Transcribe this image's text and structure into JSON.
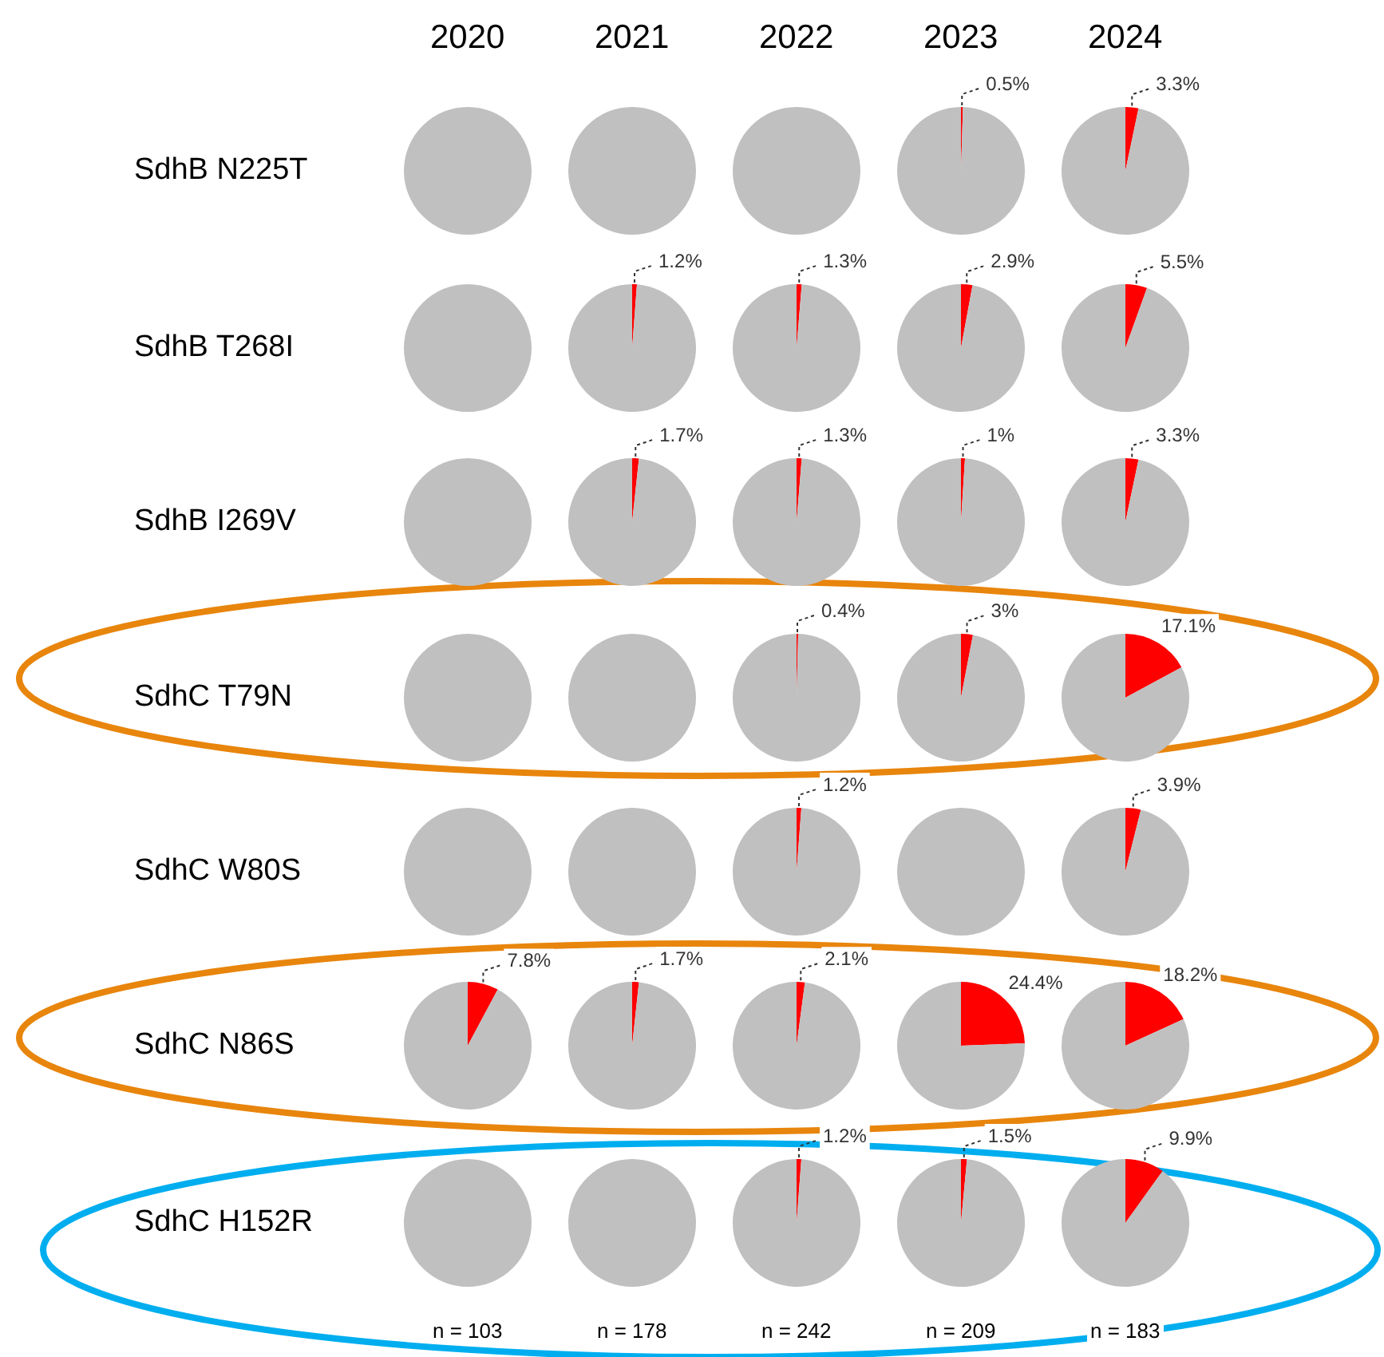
{
  "chart_data": [
    {
      "type": "pie",
      "title": "2020",
      "ylabel": "SdhB N225T",
      "categories": [
        null,
        null
      ],
      "values": [
        0,
        100
      ],
      "colors": [
        "#ff0000",
        "#c0c0c0"
      ],
      "value_labels": [
        null,
        null
      ]
    },
    {
      "type": "pie",
      "title": "2021",
      "categories": [
        null,
        null
      ],
      "values": [
        0,
        100
      ],
      "colors": [
        "#ff0000",
        "#c0c0c0"
      ],
      "value_labels": [
        null,
        null
      ]
    },
    {
      "type": "pie",
      "title": "2022",
      "categories": [
        null,
        null
      ],
      "values": [
        0,
        100
      ],
      "colors": [
        "#ff0000",
        "#c0c0c0"
      ],
      "value_labels": [
        null,
        null
      ]
    },
    {
      "type": "pie",
      "title": "2023",
      "categories": [
        null,
        null
      ],
      "values": [
        0.5,
        99.5
      ],
      "colors": [
        "#ff0000",
        "#c0c0c0"
      ],
      "value_labels": [
        "0.5%",
        null
      ]
    },
    {
      "type": "pie",
      "title": "2024",
      "categories": [
        null,
        null
      ],
      "values": [
        3.3,
        96.7
      ],
      "colors": [
        "#ff0000",
        "#c0c0c0"
      ],
      "value_labels": [
        "3.3%",
        null
      ]
    },
    {
      "type": "pie",
      "ylabel": "SdhB T268I",
      "categories": [
        null,
        null
      ],
      "values": [
        0,
        100
      ],
      "colors": [
        "#ff0000",
        "#c0c0c0"
      ],
      "value_labels": [
        null,
        null
      ]
    },
    {
      "type": "pie",
      "categories": [
        null,
        null
      ],
      "values": [
        1.2,
        98.8
      ],
      "colors": [
        "#ff0000",
        "#c0c0c0"
      ],
      "value_labels": [
        "1.2%",
        null
      ]
    },
    {
      "type": "pie",
      "categories": [
        null,
        null
      ],
      "values": [
        1.3,
        98.7
      ],
      "colors": [
        "#ff0000",
        "#c0c0c0"
      ],
      "value_labels": [
        "1.3%",
        null
      ]
    },
    {
      "type": "pie",
      "categories": [
        null,
        null
      ],
      "values": [
        2.9,
        97.1
      ],
      "colors": [
        "#ff0000",
        "#c0c0c0"
      ],
      "value_labels": [
        "2.9%",
        null
      ]
    },
    {
      "type": "pie",
      "categories": [
        null,
        null
      ],
      "values": [
        5.5,
        94.5
      ],
      "colors": [
        "#ff0000",
        "#c0c0c0"
      ],
      "value_labels": [
        "5.5%",
        null
      ]
    },
    {
      "type": "pie",
      "ylabel": "SdhB I269V",
      "categories": [
        null,
        null
      ],
      "values": [
        0,
        100
      ],
      "colors": [
        "#ff0000",
        "#c0c0c0"
      ],
      "value_labels": [
        null,
        null
      ]
    },
    {
      "type": "pie",
      "categories": [
        null,
        null
      ],
      "values": [
        1.7,
        98.3
      ],
      "colors": [
        "#ff0000",
        "#c0c0c0"
      ],
      "value_labels": [
        "1.7%",
        null
      ]
    },
    {
      "type": "pie",
      "categories": [
        null,
        null
      ],
      "values": [
        1.3,
        98.7
      ],
      "colors": [
        "#ff0000",
        "#c0c0c0"
      ],
      "value_labels": [
        "1.3%",
        null
      ]
    },
    {
      "type": "pie",
      "categories": [
        null,
        null
      ],
      "values": [
        1,
        99
      ],
      "colors": [
        "#ff0000",
        "#c0c0c0"
      ],
      "value_labels": [
        "1%",
        null
      ]
    },
    {
      "type": "pie",
      "categories": [
        null,
        null
      ],
      "values": [
        3.3,
        96.7
      ],
      "colors": [
        "#ff0000",
        "#c0c0c0"
      ],
      "value_labels": [
        "3.3%",
        null
      ]
    },
    {
      "type": "pie",
      "ylabel": "SdhC T79N",
      "categories": [
        null,
        null
      ],
      "values": [
        0,
        100
      ],
      "colors": [
        "#ff0000",
        "#c0c0c0"
      ],
      "value_labels": [
        null,
        null
      ]
    },
    {
      "type": "pie",
      "categories": [
        null,
        null
      ],
      "values": [
        0,
        100
      ],
      "colors": [
        "#ff0000",
        "#c0c0c0"
      ],
      "value_labels": [
        null,
        null
      ]
    },
    {
      "type": "pie",
      "categories": [
        null,
        null
      ],
      "values": [
        0.4,
        99.6
      ],
      "colors": [
        "#ff0000",
        "#c0c0c0"
      ],
      "value_labels": [
        "0.4%",
        null
      ]
    },
    {
      "type": "pie",
      "categories": [
        null,
        null
      ],
      "values": [
        3,
        97
      ],
      "colors": [
        "#ff0000",
        "#c0c0c0"
      ],
      "value_labels": [
        "3%",
        null
      ]
    },
    {
      "type": "pie",
      "categories": [
        null,
        null
      ],
      "values": [
        17.1,
        82.9
      ],
      "colors": [
        "#ff0000",
        "#c0c0c0"
      ],
      "value_labels": [
        "17.1%",
        null
      ]
    },
    {
      "type": "pie",
      "ylabel": "SdhC W80S",
      "categories": [
        null,
        null
      ],
      "values": [
        0,
        100
      ],
      "colors": [
        "#ff0000",
        "#c0c0c0"
      ],
      "value_labels": [
        null,
        null
      ]
    },
    {
      "type": "pie",
      "categories": [
        null,
        null
      ],
      "values": [
        0,
        100
      ],
      "colors": [
        "#ff0000",
        "#c0c0c0"
      ],
      "value_labels": [
        null,
        null
      ]
    },
    {
      "type": "pie",
      "categories": [
        null,
        null
      ],
      "values": [
        1.2,
        98.8
      ],
      "colors": [
        "#ff0000",
        "#c0c0c0"
      ],
      "value_labels": [
        "1.2%",
        null
      ]
    },
    {
      "type": "pie",
      "categories": [
        null,
        null
      ],
      "values": [
        0,
        100
      ],
      "colors": [
        "#ff0000",
        "#c0c0c0"
      ],
      "value_labels": [
        null,
        null
      ]
    },
    {
      "type": "pie",
      "categories": [
        null,
        null
      ],
      "values": [
        3.9,
        96.1
      ],
      "colors": [
        "#ff0000",
        "#c0c0c0"
      ],
      "value_labels": [
        "3.9%",
        null
      ]
    },
    {
      "type": "pie",
      "ylabel": "SdhC N86S",
      "categories": [
        null,
        null
      ],
      "values": [
        7.8,
        92.2
      ],
      "colors": [
        "#ff0000",
        "#c0c0c0"
      ],
      "value_labels": [
        "7.8%",
        null
      ]
    },
    {
      "type": "pie",
      "categories": [
        null,
        null
      ],
      "values": [
        1.7,
        98.3
      ],
      "colors": [
        "#ff0000",
        "#c0c0c0"
      ],
      "value_labels": [
        "1.7%",
        null
      ]
    },
    {
      "type": "pie",
      "categories": [
        null,
        null
      ],
      "values": [
        2.1,
        97.9
      ],
      "colors": [
        "#ff0000",
        "#c0c0c0"
      ],
      "value_labels": [
        "2.1%",
        null
      ]
    },
    {
      "type": "pie",
      "categories": [
        null,
        null
      ],
      "values": [
        24.4,
        75.6
      ],
      "colors": [
        "#ff0000",
        "#c0c0c0"
      ],
      "value_labels": [
        "24.4%",
        null
      ]
    },
    {
      "type": "pie",
      "categories": [
        null,
        null
      ],
      "values": [
        18.2,
        81.8
      ],
      "colors": [
        "#ff0000",
        "#c0c0c0"
      ],
      "value_labels": [
        "18.2%",
        null
      ]
    },
    {
      "type": "pie",
      "ylabel": "SdhC H152R",
      "xlabel": "n = 103",
      "categories": [
        null,
        null
      ],
      "values": [
        0,
        100
      ],
      "colors": [
        "#ff0000",
        "#c0c0c0"
      ],
      "value_labels": [
        null,
        null
      ]
    },
    {
      "type": "pie",
      "xlabel": "n = 178",
      "categories": [
        null,
        null
      ],
      "values": [
        0,
        100
      ],
      "colors": [
        "#ff0000",
        "#c0c0c0"
      ],
      "value_labels": [
        null,
        null
      ]
    },
    {
      "type": "pie",
      "xlabel": "n = 242",
      "categories": [
        null,
        null
      ],
      "values": [
        1.2,
        98.8
      ],
      "colors": [
        "#ff0000",
        "#c0c0c0"
      ],
      "value_labels": [
        "1.2%",
        null
      ]
    },
    {
      "type": "pie",
      "xlabel": "n = 209",
      "categories": [
        null,
        null
      ],
      "values": [
        1.5,
        98.5
      ],
      "colors": [
        "#ff0000",
        "#c0c0c0"
      ],
      "value_labels": [
        "1.5%",
        null
      ]
    },
    {
      "type": "pie",
      "xlabel": "n = 183",
      "categories": [
        null,
        null
      ],
      "values": [
        9.9,
        90.1
      ],
      "colors": [
        "#ff0000",
        "#c0c0c0"
      ],
      "value_labels": [
        "9.9%",
        null
      ]
    }
  ]
}
